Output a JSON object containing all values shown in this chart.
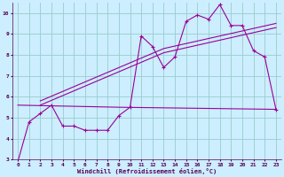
{
  "background_color": "#cceeff",
  "grid_color": "#99cccc",
  "line_color": "#990099",
  "xlim": [
    -0.5,
    23.5
  ],
  "ylim": [
    3,
    10.5
  ],
  "yticks": [
    3,
    4,
    5,
    6,
    7,
    8,
    9,
    10
  ],
  "xticks": [
    0,
    1,
    2,
    3,
    4,
    5,
    6,
    7,
    8,
    9,
    10,
    11,
    12,
    13,
    14,
    15,
    16,
    17,
    18,
    19,
    20,
    21,
    22,
    23
  ],
  "xlabel": "Windchill (Refroidissement éolien,°C)",
  "series1_x": [
    0,
    1,
    2,
    3,
    4,
    5,
    6,
    7,
    8,
    9,
    10,
    11,
    12,
    13,
    14,
    15,
    16,
    17,
    18,
    19,
    20,
    21,
    22,
    23
  ],
  "series1_y": [
    2.9,
    4.8,
    5.2,
    5.6,
    4.6,
    4.6,
    4.4,
    4.4,
    4.4,
    5.1,
    5.5,
    8.9,
    8.4,
    7.4,
    7.9,
    9.6,
    9.9,
    9.7,
    10.4,
    9.4,
    9.4,
    8.2,
    7.9,
    5.4
  ],
  "series2_x": [
    0,
    9,
    23
  ],
  "series2_y": [
    5.6,
    5.5,
    5.4
  ],
  "series3_x": [
    2,
    13,
    23
  ],
  "series3_y": [
    5.6,
    8.1,
    9.3
  ],
  "series4_x": [
    2,
    13,
    23
  ],
  "series4_y": [
    5.8,
    8.3,
    9.5
  ]
}
